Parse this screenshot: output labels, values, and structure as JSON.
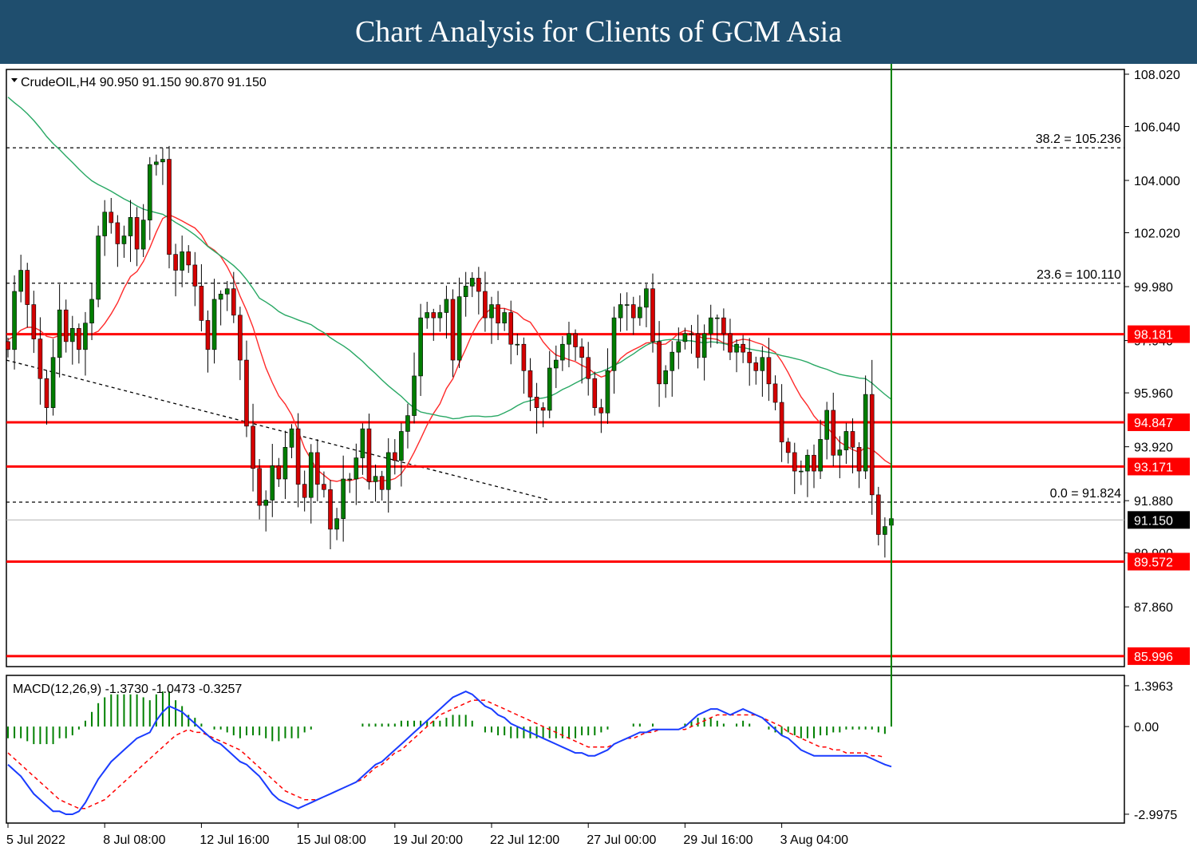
{
  "page": {
    "title": "Chart Analysis for Clients of GCM Asia"
  },
  "colors": {
    "banner": "#1f4e6e",
    "bull": "#007d00",
    "bear": "#d40000",
    "level_line": "#ff0000",
    "ma_fast": "#ff2a2a",
    "ma_slow": "#28a864",
    "macd_line": "#1a3cff",
    "signal_line": "#ff0000",
    "histogram": "#008000"
  },
  "chart_data": [
    {
      "type": "candlestick",
      "symbol_header": "CrudeOIL,H4  90.950 91.150 90.870 91.150",
      "symbol": "CrudeOIL",
      "timeframe": "H4",
      "ohlc_last": {
        "open": 90.95,
        "high": 91.15,
        "low": 90.87,
        "close": 91.15
      },
      "last_price_label": "91.150",
      "ylim": [
        85.6,
        108.2
      ],
      "y_ticks": [
        {
          "value": 108.02,
          "label": "108.020"
        },
        {
          "value": 106.04,
          "label": "106.040"
        },
        {
          "value": 104.0,
          "label": "104.000"
        },
        {
          "value": 102.02,
          "label": "102.020"
        },
        {
          "value": 99.98,
          "label": "99.980"
        },
        {
          "value": 97.94,
          "label": "97.940"
        },
        {
          "value": 95.96,
          "label": "95.960"
        },
        {
          "value": 93.92,
          "label": "93.920"
        },
        {
          "value": 91.88,
          "label": "91.880"
        },
        {
          "value": 89.9,
          "label": "89.900"
        },
        {
          "value": 87.86,
          "label": "87.860"
        }
      ],
      "x_ticks": [
        {
          "index": 0,
          "label": "5 Jul 2022"
        },
        {
          "index": 15,
          "label": "8 Jul 08:00"
        },
        {
          "index": 30,
          "label": "12 Jul 16:00"
        },
        {
          "index": 45,
          "label": "15 Jul 08:00"
        },
        {
          "index": 60,
          "label": "19 Jul 20:00"
        },
        {
          "index": 75,
          "label": "22 Jul 12:00"
        },
        {
          "index": 90,
          "label": "27 Jul 00:00"
        },
        {
          "index": 105,
          "label": "29 Jul 16:00"
        },
        {
          "index": 120,
          "label": "3 Aug 04:00"
        }
      ],
      "support_resistance": [
        {
          "value": 98.181,
          "label": "98.181"
        },
        {
          "value": 94.847,
          "label": "94.847"
        },
        {
          "value": 93.171,
          "label": "93.171"
        },
        {
          "value": 89.572,
          "label": "89.572"
        },
        {
          "value": 85.996,
          "label": "85.996"
        }
      ],
      "fibonacci": [
        {
          "value": 105.236,
          "label": "38.2 = 105.236"
        },
        {
          "value": 100.11,
          "label": "23.6 = 100.110"
        },
        {
          "value": 91.824,
          "label": "0.0 = 91.824"
        }
      ],
      "trendline": {
        "from": [
          0,
          97.2
        ],
        "to": [
          84,
          91.9
        ]
      },
      "closes": [
        97.6,
        99.8,
        100.6,
        99.3,
        98.0,
        96.5,
        95.4,
        97.3,
        99.1,
        97.9,
        98.4,
        97.6,
        98.6,
        99.5,
        101.9,
        102.8,
        102.4,
        101.6,
        101.9,
        102.6,
        101.4,
        102.5,
        104.6,
        104.7,
        104.8,
        101.2,
        100.6,
        101.3,
        100.8,
        100.0,
        98.7,
        97.6,
        99.5,
        99.7,
        99.9,
        98.9,
        97.2,
        94.7,
        93.1,
        91.7,
        91.9,
        93.2,
        92.7,
        93.9,
        94.6,
        92.5,
        92.0,
        93.7,
        92.5,
        92.3,
        90.8,
        91.2,
        92.7,
        92.7,
        93.5,
        94.6,
        92.6,
        92.8,
        92.3,
        93.7,
        93.4,
        94.5,
        95.1,
        96.6,
        98.8,
        99.0,
        98.8,
        99.0,
        99.5,
        97.2,
        99.6,
        100.0,
        100.3,
        99.8,
        98.8,
        99.3,
        98.6,
        99.0,
        97.8,
        97.8,
        96.8,
        95.8,
        95.4,
        95.3,
        96.9,
        97.2,
        97.8,
        98.2,
        97.7,
        97.3,
        96.5,
        95.4,
        95.2,
        96.8,
        98.8,
        99.3,
        99.3,
        98.8,
        99.2,
        99.9,
        97.9,
        96.3,
        96.8,
        97.5,
        97.9,
        98.2,
        98.2,
        97.3,
        98.2,
        98.8,
        98.8,
        98.2,
        97.5,
        97.8,
        97.5,
        97.1,
        96.8,
        97.3,
        96.3,
        95.6,
        94.1,
        93.7,
        93.0,
        93.0,
        93.6,
        93.0,
        94.2,
        95.3,
        93.6,
        93.8,
        94.5,
        93.9,
        93.0,
        95.9,
        92.1,
        90.6,
        90.9,
        91.2
      ],
      "ma_fast_label": "",
      "ma_slow_label": ""
    },
    {
      "type": "macd",
      "title": "MACD(12,26,9) -1.3730 -1.0473 -0.3257",
      "params": [
        12,
        26,
        9
      ],
      "values": {
        "macd": -1.373,
        "signal": -1.0473,
        "histogram": -0.3257
      },
      "ylim": [
        -3.3,
        1.75
      ],
      "y_ticks": [
        {
          "value": 1.3963,
          "label": "1.3963"
        },
        {
          "value": 0.0,
          "label": "0.00"
        },
        {
          "value": -2.9975,
          "label": "-2.9975"
        }
      ],
      "macd_line": [
        -1.3,
        -1.5,
        -1.7,
        -2.0,
        -2.3,
        -2.5,
        -2.7,
        -2.9,
        -2.9,
        -3.0,
        -3.0,
        -2.9,
        -2.6,
        -2.2,
        -1.8,
        -1.5,
        -1.2,
        -1.0,
        -0.8,
        -0.6,
        -0.4,
        -0.3,
        -0.2,
        0.2,
        0.5,
        0.7,
        0.6,
        0.5,
        0.3,
        0.1,
        -0.1,
        -0.3,
        -0.5,
        -0.6,
        -0.8,
        -1.0,
        -1.2,
        -1.3,
        -1.5,
        -1.7,
        -2.0,
        -2.3,
        -2.5,
        -2.6,
        -2.7,
        -2.8,
        -2.7,
        -2.6,
        -2.5,
        -2.4,
        -2.3,
        -2.2,
        -2.1,
        -2.0,
        -1.9,
        -1.7,
        -1.5,
        -1.3,
        -1.2,
        -1.0,
        -0.8,
        -0.6,
        -0.4,
        -0.2,
        0.0,
        0.2,
        0.4,
        0.6,
        0.8,
        1.0,
        1.1,
        1.2,
        1.1,
        0.9,
        0.7,
        0.6,
        0.4,
        0.3,
        0.1,
        0.0,
        -0.1,
        -0.2,
        -0.3,
        -0.4,
        -0.5,
        -0.6,
        -0.7,
        -0.8,
        -0.9,
        -0.9,
        -1.0,
        -1.0,
        -0.9,
        -0.8,
        -0.6,
        -0.5,
        -0.4,
        -0.3,
        -0.2,
        -0.2,
        -0.1,
        -0.1,
        -0.1,
        -0.1,
        -0.1,
        0.0,
        0.2,
        0.4,
        0.5,
        0.6,
        0.6,
        0.5,
        0.4,
        0.5,
        0.6,
        0.5,
        0.4,
        0.3,
        0.1,
        -0.1,
        -0.3,
        -0.4,
        -0.6,
        -0.8,
        -0.9,
        -1.0,
        -1.0,
        -1.0,
        -1.0,
        -1.0,
        -1.0,
        -1.0,
        -1.0,
        -1.0,
        -1.1,
        -1.2,
        -1.3,
        -1.37
      ],
      "signal_line": [
        -0.9,
        -1.1,
        -1.3,
        -1.5,
        -1.7,
        -1.9,
        -2.1,
        -2.3,
        -2.5,
        -2.6,
        -2.7,
        -2.8,
        -2.8,
        -2.7,
        -2.6,
        -2.5,
        -2.3,
        -2.1,
        -1.9,
        -1.7,
        -1.5,
        -1.3,
        -1.1,
        -0.9,
        -0.7,
        -0.5,
        -0.3,
        -0.2,
        -0.1,
        -0.2,
        -0.2,
        -0.3,
        -0.4,
        -0.5,
        -0.6,
        -0.7,
        -0.8,
        -1.0,
        -1.2,
        -1.4,
        -1.6,
        -1.8,
        -2.0,
        -2.2,
        -2.3,
        -2.4,
        -2.5,
        -2.5,
        -2.5,
        -2.4,
        -2.3,
        -2.2,
        -2.1,
        -2.0,
        -1.9,
        -1.8,
        -1.6,
        -1.4,
        -1.3,
        -1.1,
        -0.9,
        -0.8,
        -0.6,
        -0.4,
        -0.2,
        0.0,
        0.2,
        0.4,
        0.5,
        0.6,
        0.7,
        0.8,
        0.9,
        0.9,
        0.9,
        0.8,
        0.7,
        0.6,
        0.5,
        0.4,
        0.3,
        0.2,
        0.1,
        0.0,
        -0.1,
        -0.2,
        -0.3,
        -0.4,
        -0.5,
        -0.6,
        -0.7,
        -0.7,
        -0.7,
        -0.7,
        -0.6,
        -0.5,
        -0.4,
        -0.4,
        -0.3,
        -0.2,
        -0.2,
        -0.1,
        -0.1,
        -0.1,
        -0.1,
        -0.1,
        0.0,
        0.1,
        0.2,
        0.3,
        0.4,
        0.4,
        0.4,
        0.4,
        0.4,
        0.4,
        0.4,
        0.3,
        0.2,
        0.1,
        0.0,
        -0.2,
        -0.3,
        -0.4,
        -0.5,
        -0.6,
        -0.7,
        -0.7,
        -0.8,
        -0.8,
        -0.9,
        -0.9,
        -0.9,
        -0.9,
        -1.0,
        -1.0,
        -1.05
      ]
    }
  ]
}
